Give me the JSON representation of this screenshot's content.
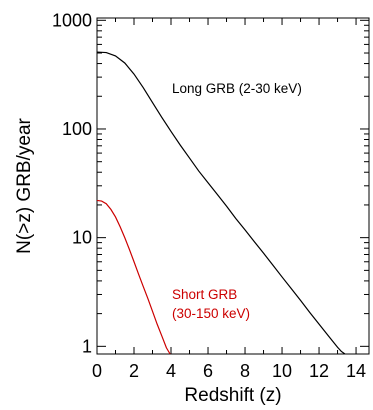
{
  "chart_data": {
    "type": "line",
    "title": "",
    "xlabel": "Redshift  (z)",
    "ylabel": "N(>z)   GRB/year",
    "xlim": [
      0,
      14.7
    ],
    "ylim": [
      0.85,
      1050
    ],
    "y_scale": "log",
    "grid": false,
    "x_ticks": [
      0,
      2,
      4,
      6,
      8,
      10,
      12,
      14
    ],
    "x_tick_labels": [
      "0",
      "2",
      "4",
      "6",
      "8",
      "10",
      "12",
      "14"
    ],
    "y_ticks": [
      1,
      10,
      100,
      1000
    ],
    "y_tick_labels": [
      "1",
      "10",
      "100",
      "1000"
    ],
    "series": [
      {
        "name": "Long GRB (2-30 keV)",
        "color": "#000000",
        "x": [
          0,
          0.5,
          1,
          1.5,
          2,
          2.5,
          3,
          3.5,
          4,
          4.5,
          5,
          5.5,
          6,
          6.5,
          7,
          7.5,
          8,
          8.5,
          9,
          9.5,
          10,
          10.5,
          11,
          11.5,
          12,
          12.5,
          13,
          13.2,
          13.4
        ],
        "y": [
          510,
          505,
          470,
          405,
          320,
          240,
          175,
          128,
          95,
          71,
          54,
          41,
          32,
          25,
          19.5,
          15,
          11.8,
          9.2,
          7.2,
          5.6,
          4.35,
          3.4,
          2.65,
          2.05,
          1.6,
          1.25,
          0.98,
          0.9,
          0.85
        ]
      },
      {
        "name": "Short GRB (30-150 keV)",
        "color": "#cc0000",
        "x": [
          0,
          0.25,
          0.5,
          0.75,
          1,
          1.25,
          1.5,
          1.75,
          2,
          2.25,
          2.5,
          2.75,
          3,
          3.25,
          3.5,
          3.75,
          3.95
        ],
        "y": [
          22,
          21.7,
          20.5,
          18.2,
          15.5,
          12.6,
          10,
          7.8,
          6,
          4.6,
          3.55,
          2.75,
          2.1,
          1.6,
          1.25,
          0.97,
          0.85
        ]
      }
    ],
    "annotations": [
      {
        "lines": [
          "Long GRB (2-30 keV)"
        ],
        "color": "#000000"
      },
      {
        "lines": [
          "Short GRB",
          "(30-150 keV)"
        ],
        "color": "#cc0000"
      }
    ]
  }
}
